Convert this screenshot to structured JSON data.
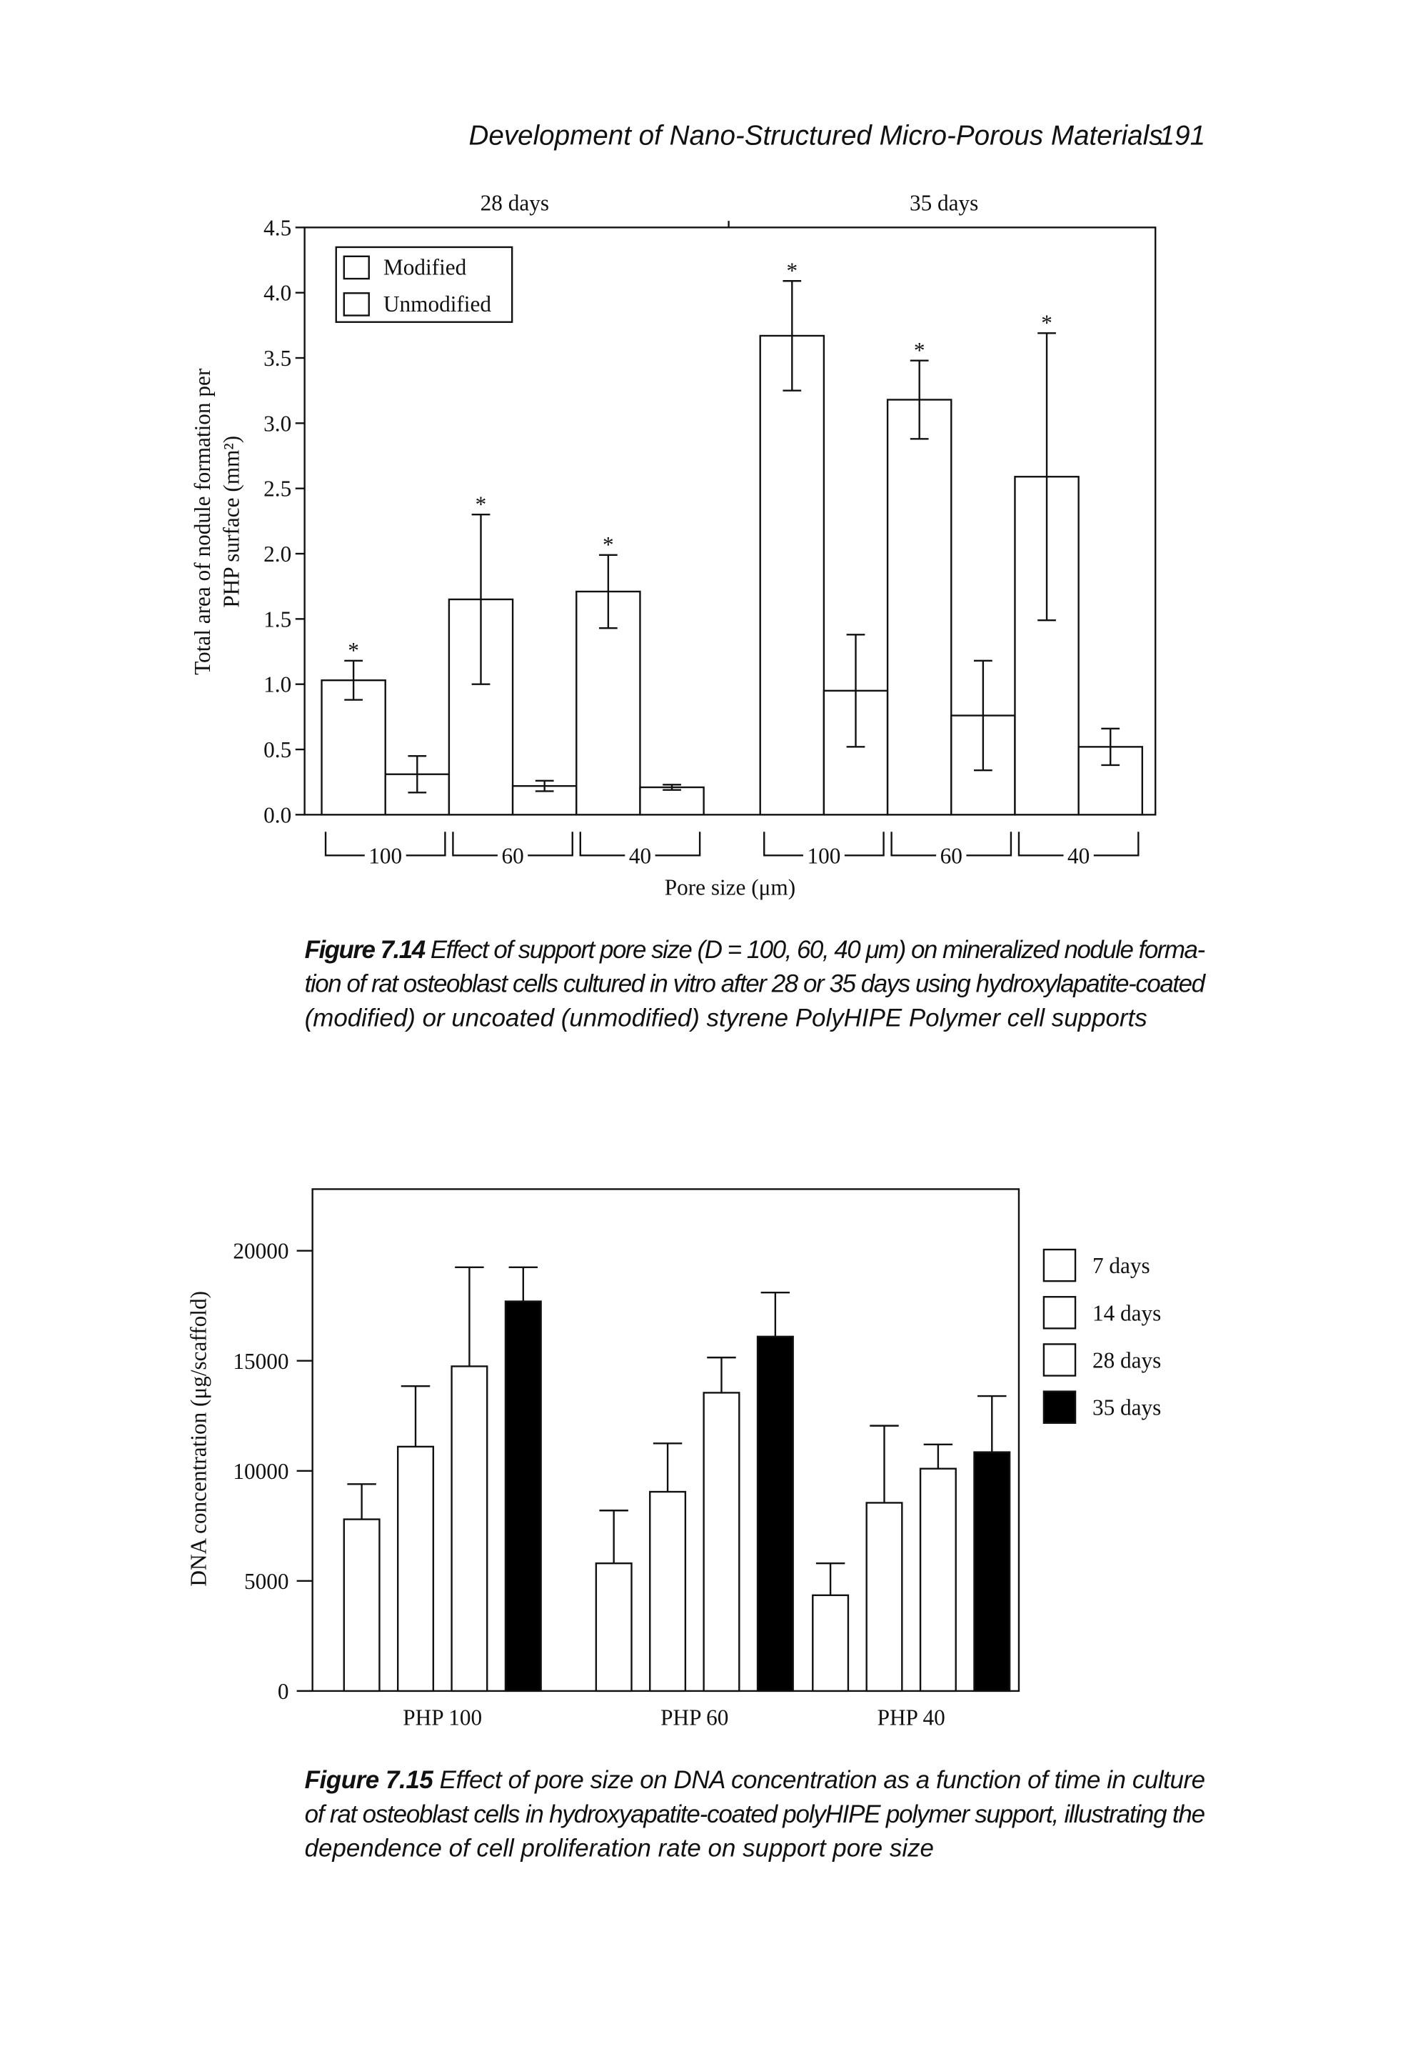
{
  "header": {
    "title": "Development of Nano-Structured Micro-Porous Materials",
    "page": "191"
  },
  "chart_data": [
    {
      "type": "bar",
      "group_labels": [
        "28 days",
        "35 days"
      ],
      "categories": [
        "100",
        "60",
        "40",
        "100",
        "60",
        "40"
      ],
      "xlabel": "Pore size (μm)",
      "ylabel": [
        "Total area of nodule formation per",
        "PHP surface (mm²)"
      ],
      "ylim": [
        0,
        4.5
      ],
      "yticks": [
        {
          "value": 0,
          "label": "0.0"
        },
        {
          "value": 0.5,
          "label": "0.5"
        },
        {
          "value": 1,
          "label": "1.0"
        },
        {
          "value": 1.5,
          "label": "1.5"
        },
        {
          "value": 2,
          "label": "2.0"
        },
        {
          "value": 2.5,
          "label": "2.5"
        },
        {
          "value": 3,
          "label": "3.0"
        },
        {
          "value": 3.5,
          "label": "3.5"
        },
        {
          "value": 4,
          "label": "4.0"
        },
        {
          "value": 4.5,
          "label": "4.5"
        }
      ],
      "legend": "upper left",
      "series": [
        {
          "name": "Modified",
          "color": "#ffffff",
          "values": [
            1.03,
            1.65,
            1.71,
            3.67,
            3.18,
            2.59
          ],
          "errors": [
            0.15,
            0.65,
            0.28,
            0.42,
            0.3,
            1.1
          ],
          "annotations": [
            "*",
            "*",
            "*",
            "*",
            "*",
            "*"
          ]
        },
        {
          "name": "Unmodified",
          "color": "#ffffff",
          "values": [
            0.31,
            0.22,
            0.21,
            0.95,
            0.76,
            0.52
          ],
          "errors": [
            0.14,
            0.04,
            0.02,
            0.43,
            0.42,
            0.14
          ]
        }
      ],
      "caption": {
        "label": "Figure 7.14",
        "lines": [
          " Effect of support pore size (D = 100, 60, 40 μm) on mineralized nodule forma-",
          "tion of rat osteoblast cells cultured in vitro after 28 or 35 days using hydroxylapatite-coated",
          "(modified) or uncoated (unmodified) styrene PolyHIPE Polymer cell supports"
        ]
      }
    },
    {
      "type": "bar",
      "categories": [
        "PHP 100",
        "PHP 60",
        "PHP 40"
      ],
      "ylabel": "DNA concentration (μg/scaffold)",
      "ylim": [
        0,
        22800
      ],
      "yticks": [
        0,
        5000,
        10000,
        15000,
        20000
      ],
      "legend": "right",
      "series": [
        {
          "name": "7 days",
          "color": "#ffffff",
          "values": [
            7800,
            5800,
            4350
          ],
          "errors": [
            1600,
            2400,
            1450
          ]
        },
        {
          "name": "14 days",
          "color": "#ffffff",
          "values": [
            11100,
            9050,
            8550
          ],
          "errors": [
            2750,
            2200,
            3500
          ]
        },
        {
          "name": "28 days",
          "color": "#ffffff",
          "values": [
            14750,
            13550,
            10100
          ],
          "errors": [
            4500,
            1600,
            1100
          ]
        },
        {
          "name": "35 days",
          "color": "#000000",
          "values": [
            17700,
            16100,
            10850
          ],
          "errors": [
            1550,
            2000,
            2550
          ]
        }
      ],
      "caption": {
        "label": "Figure 7.15",
        "lines": [
          " Effect of pore size on DNA concentration as a function of time in culture",
          "of rat osteoblast cells in hydroxyapatite-coated polyHIPE polymer support, illustrating the",
          "dependence of cell proliferation rate on support pore size"
        ]
      }
    }
  ]
}
